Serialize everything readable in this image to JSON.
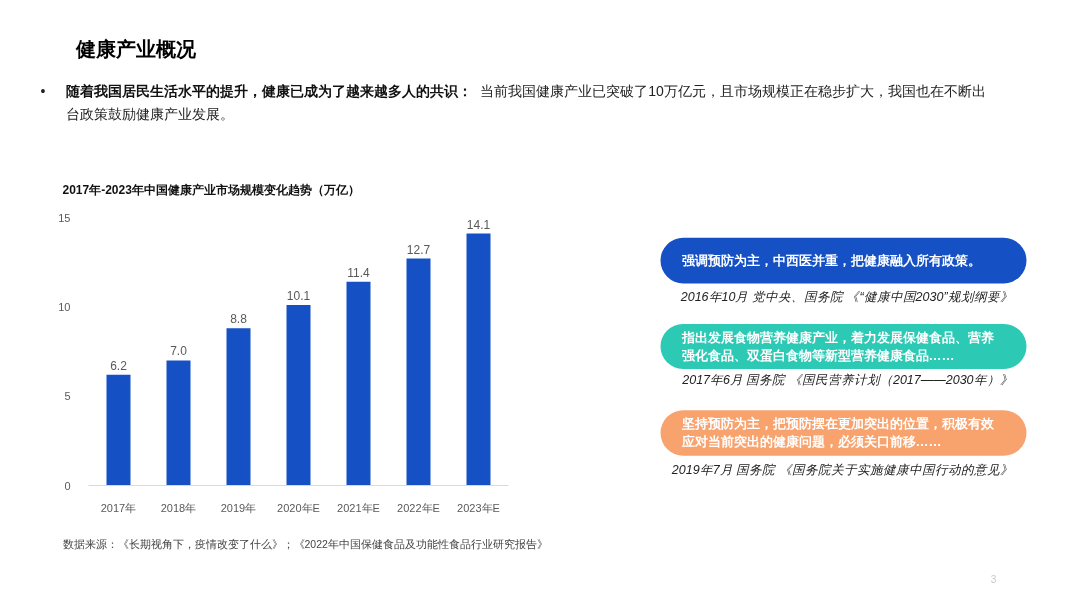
{
  "chart_data": {
    "type": "bar",
    "title": "2017年-2023年中国健康产业市场规模变化趋势（万亿）",
    "categories": [
      "2017年",
      "2018年",
      "2019年",
      "2020年E",
      "2021年E",
      "2022年E",
      "2023年E"
    ],
    "values": [
      6.2,
      7.0,
      8.8,
      10.1,
      11.4,
      12.7,
      14.1
    ],
    "value_labels": [
      "6.2",
      "7.0",
      "8.8",
      "10.1",
      "11.4",
      "12.7",
      "14.1"
    ],
    "color": "#1551c4",
    "ylim": [
      0,
      15
    ],
    "yticks": [
      0,
      5,
      10,
      15
    ],
    "annotations": [
      "健康产业概况",
      "•",
      "随着我国居民生活水平的提升，健康已成为了越来越多人的共识：",
      "当前我国健康产业已突破了10万亿元，且市场规模正在稳步扩大，我国也在不断出",
      "台政策鼓励健康产业发展。",
      "强调预防为主，中西医并重，把健康融入所有政策。",
      "2016年10月  党中央、国务院  《“健康中国2030”规划纲要》",
      "指出发展食物营养健康产业，着力发展保健食品、营养强化食品、双蛋白食物等新型营养健康食品……",
      "2017年6月  国务院  《国民营养计划（2017——2030年）》",
      "坚持预防为主，把预防摆在更加突出的位置，积极有效应对当前突出的健康问题，必须关口前移……",
      "2019年7月  国务院  《国务院关于实施健康中国行动的意见》",
      "数据来源：《长期视角下，疫情改变了什么》；《2022年中国保健食品及功能性食品行业研究报告》",
      "3"
    ]
  }
}
